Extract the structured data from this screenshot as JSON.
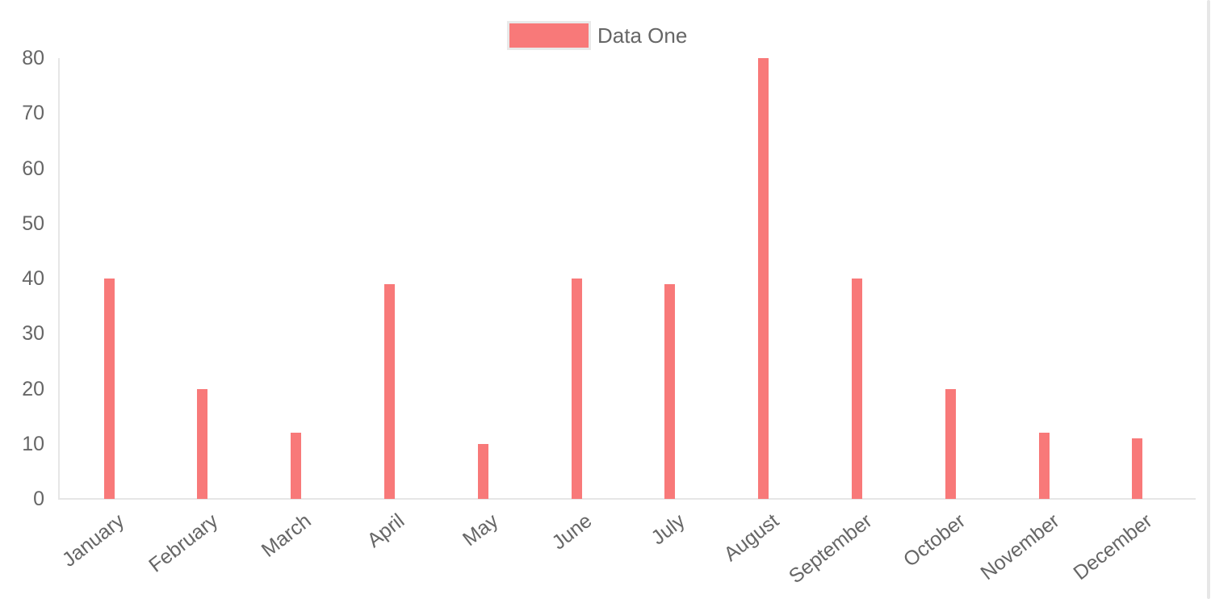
{
  "chart_data": {
    "type": "bar",
    "categories": [
      "January",
      "February",
      "March",
      "April",
      "May",
      "June",
      "July",
      "August",
      "September",
      "October",
      "November",
      "December"
    ],
    "series": [
      {
        "name": "Data One",
        "color": "#f87979",
        "values": [
          40,
          20,
          12,
          39,
          10,
          40,
          39,
          80,
          40,
          20,
          12,
          11
        ]
      }
    ],
    "title": "",
    "xlabel": "",
    "ylabel": "",
    "ylim": [
      0,
      80
    ],
    "yticks": [
      0,
      10,
      20,
      30,
      40,
      50,
      60,
      70,
      80
    ],
    "legend_position": "top",
    "grid": false,
    "axis_color": "#e6e6e6",
    "tick_text_color": "#666666",
    "x_label_rotation_deg": -38
  },
  "legend": {
    "label": "Data One"
  }
}
